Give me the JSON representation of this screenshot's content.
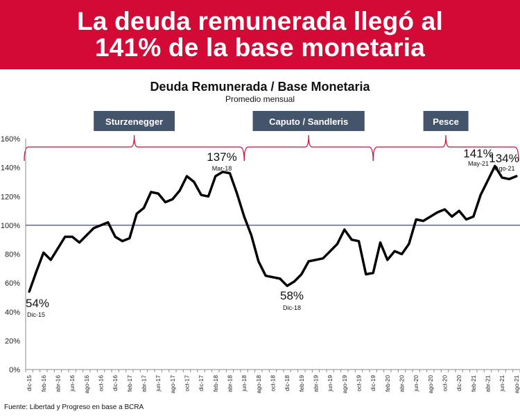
{
  "banner": {
    "line1": "La deuda remunerada llegó al",
    "line2": "141% de la base monetaria"
  },
  "source": "Fuente: Libertad y Progreso en  base a BCRA",
  "colors": {
    "banner": "#d40a36",
    "line": "#000000",
    "reference_line": "#3b4a7a",
    "bracket": "#d40a36",
    "period_box": "#44546a"
  },
  "chart_data": {
    "type": "line",
    "title": "Deuda Remunerada / Base Monetaria",
    "subtitle": "Promedio mensual",
    "ylim": [
      0,
      160
    ],
    "yticks": [
      "0%",
      "20%",
      "40%",
      "60%",
      "80%",
      "100%",
      "120%",
      "140%",
      "160%"
    ],
    "reference_line": 100,
    "grid": false,
    "xtick_labels": [
      "dic-15",
      "feb-16",
      "abr-16",
      "jun-16",
      "ago-16",
      "oct-16",
      "dic-16",
      "feb-17",
      "abr-17",
      "jun-17",
      "ago-17",
      "oct-17",
      "dic-17",
      "feb-18",
      "abr-18",
      "jun-18",
      "ago-18",
      "oct-18",
      "dic-18",
      "feb-19",
      "abr-19",
      "jun-19",
      "ago-19",
      "oct-19",
      "dic-19",
      "feb-20",
      "abr-20",
      "jun-20",
      "ago-20",
      "oct-20",
      "dic-20",
      "feb-21",
      "abr-21",
      "jun-21",
      "ago-21"
    ],
    "x": [
      "dic-15",
      "ene-16",
      "feb-16",
      "mar-16",
      "abr-16",
      "may-16",
      "jun-16",
      "jul-16",
      "ago-16",
      "sep-16",
      "oct-16",
      "nov-16",
      "dic-16",
      "ene-17",
      "feb-17",
      "mar-17",
      "abr-17",
      "may-17",
      "jun-17",
      "jul-17",
      "ago-17",
      "sep-17",
      "oct-17",
      "nov-17",
      "dic-17",
      "ene-18",
      "feb-18",
      "mar-18",
      "abr-18",
      "may-18",
      "jun-18",
      "jul-18",
      "ago-18",
      "sep-18",
      "oct-18",
      "nov-18",
      "dic-18",
      "ene-19",
      "feb-19",
      "mar-19",
      "abr-19",
      "may-19",
      "jun-19",
      "jul-19",
      "ago-19",
      "sep-19",
      "oct-19",
      "nov-19",
      "dic-19",
      "ene-20",
      "feb-20",
      "mar-20",
      "abr-20",
      "may-20",
      "jun-20",
      "jul-20",
      "ago-20",
      "sep-20",
      "oct-20",
      "nov-20",
      "dic-20",
      "ene-21",
      "feb-21",
      "mar-21",
      "abr-21",
      "may-21",
      "jun-21",
      "jul-21",
      "ago-21"
    ],
    "series": [
      {
        "values": [
          54,
          68,
          81,
          76,
          84,
          92,
          92,
          88,
          93,
          98,
          100,
          102,
          92,
          89,
          91,
          108,
          112,
          123,
          122,
          116,
          118,
          124,
          134,
          130,
          121,
          120,
          134,
          137,
          136,
          122,
          106,
          93,
          75,
          65,
          64,
          63,
          58,
          61,
          66,
          75,
          76,
          77,
          82,
          87,
          97,
          90,
          89,
          66,
          67,
          88,
          76,
          82,
          80,
          87,
          104,
          103,
          106,
          109,
          111,
          106,
          110,
          104,
          106,
          121,
          131,
          141,
          133,
          132,
          134
        ]
      }
    ],
    "periods": [
      {
        "label": "Sturzenegger",
        "start": "dic-15",
        "end": "jun-18"
      },
      {
        "label": "Caputo / Sandleris",
        "start": "jun-18",
        "end": "dic-19"
      },
      {
        "label": "Pesce",
        "start": "dic-19",
        "end": "ago-21"
      }
    ],
    "annotations": [
      {
        "value": "54%",
        "date": "Dic-15"
      },
      {
        "value": "137%",
        "date": "Mar-18"
      },
      {
        "value": "58%",
        "date": "Dic-18"
      },
      {
        "value": "141%",
        "date": "May-21"
      },
      {
        "value": "134%",
        "date": "Ago-21"
      }
    ]
  }
}
